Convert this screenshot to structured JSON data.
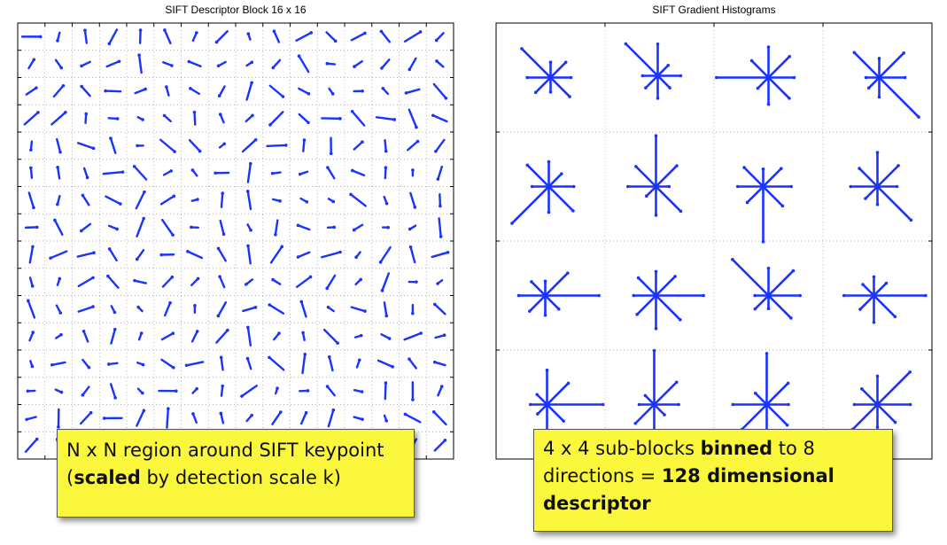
{
  "left_panel": {
    "title": "SIFT Descriptor Block 16 x 16",
    "grid": 16,
    "line_color": "#1a33ff"
  },
  "right_panel": {
    "title": "SIFT Gradient Histograms",
    "grid": 4,
    "bins": 8,
    "line_color": "#1a33ff"
  },
  "notes": {
    "left": {
      "line1": "N x N region around SIFT keypoint",
      "line2_open": "(",
      "line2_bold": "scaled",
      "line2_rest": " by detection scale k)"
    },
    "right": {
      "part1": "4 x 4 sub-blocks ",
      "bold1": "binned",
      "part2": " to 8 directions = ",
      "bold2": "128 dimensional descriptor"
    }
  }
}
